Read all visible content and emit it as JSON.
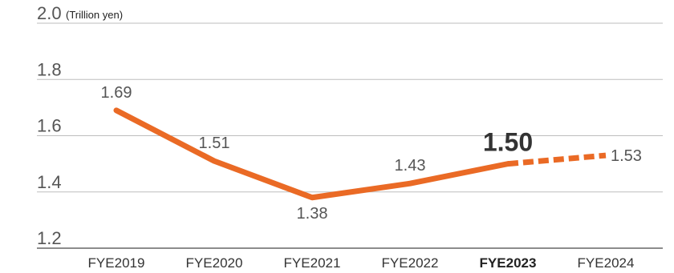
{
  "chart_data": {
    "type": "line",
    "unit": "(Trillion yen)",
    "ylim": [
      1.2,
      2.0
    ],
    "yticks": [
      "1.2",
      "1.4",
      "1.6",
      "1.8",
      "2.0"
    ],
    "categories": [
      "FYE2019",
      "FYE2020",
      "FYE2021",
      "FYE2022",
      "FYE2023",
      "FYE2024"
    ],
    "values": [
      1.69,
      1.51,
      1.38,
      1.43,
      1.5,
      1.53
    ],
    "labels": [
      "1.69",
      "1.51",
      "1.38",
      "1.43",
      "1.50",
      "1.53"
    ],
    "highlight_category": "FYE2023",
    "forecast_segment": [
      "FYE2023",
      "FYE2024"
    ],
    "grid": true,
    "colors": {
      "line": "#ea6a25",
      "grid": "#bdbdbd",
      "axis": "#666666"
    }
  }
}
